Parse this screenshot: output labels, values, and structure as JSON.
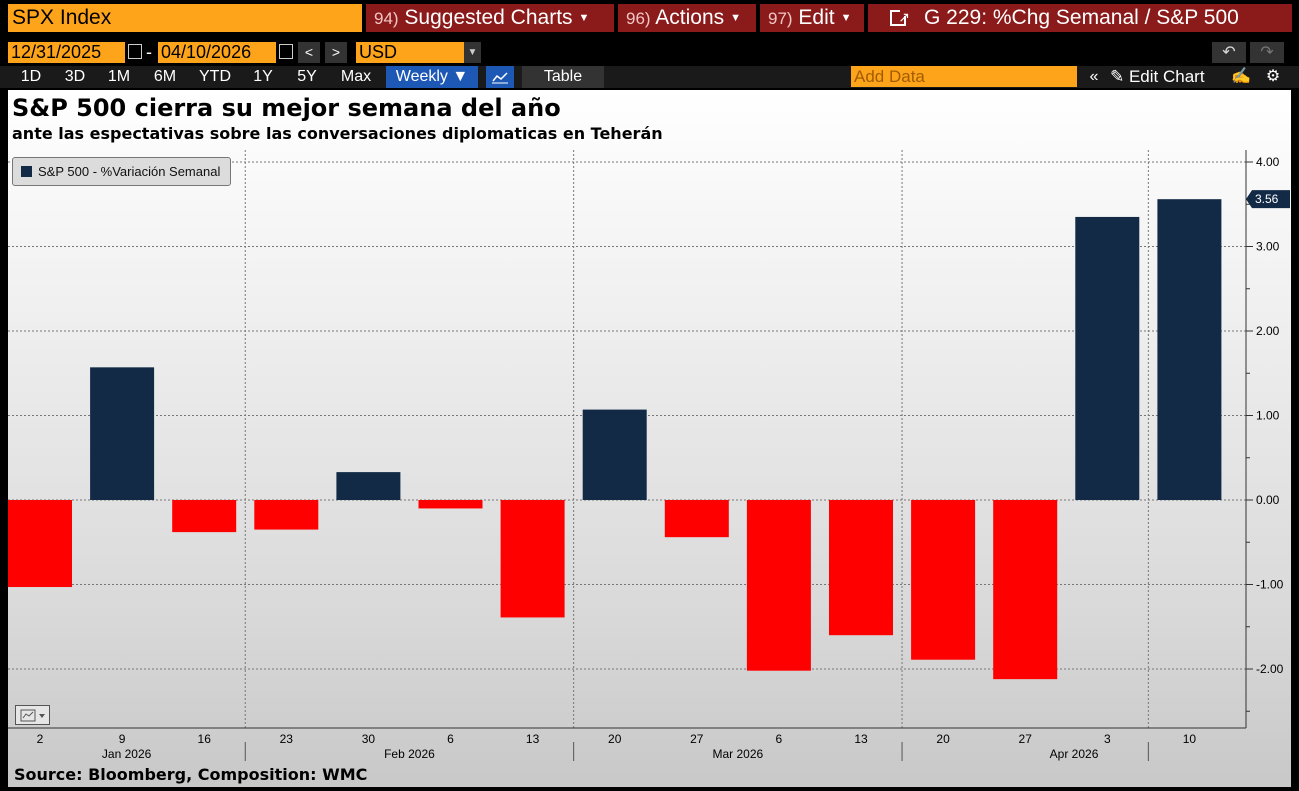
{
  "toolbar": {
    "ticker": "SPX Index",
    "menus": [
      {
        "num": "94)",
        "label": "Suggested Charts"
      },
      {
        "num": "96)",
        "label": "Actions"
      },
      {
        "num": "97)",
        "label": "Edit"
      }
    ],
    "chart_title_bar": "G 229: %Chg Semanal / S&P 500",
    "start_date": "12/31/2025",
    "date_separator": "-",
    "end_date": "04/10/2026",
    "currency": "USD",
    "periods": [
      "1D",
      "3D",
      "1M",
      "6M",
      "YTD",
      "1Y",
      "5Y",
      "Max"
    ],
    "frequency": "Weekly ▼",
    "table_label": "Table",
    "add_data_placeholder": "Add Data",
    "edit_chart_label": "Edit Chart"
  },
  "source": "Source: Bloomberg, Composition: WMC",
  "colors": {
    "positive": "#132a46",
    "negative": "#ff0000",
    "accent": "#fea41a",
    "menu": "#8b1a1a"
  },
  "chart_data": {
    "type": "bar",
    "title": "S&P 500 cierra su mejor semana del año",
    "subtitle": "ante las espectativas sobre las conversaciones diplomaticas en Teherán",
    "legend": [
      {
        "name": "S&P 500 - %Variación Semanal"
      }
    ],
    "legend_position": "top-left",
    "categories": [
      "2",
      "9",
      "16",
      "23",
      "30",
      "6",
      "13",
      "20",
      "27",
      "6",
      "13",
      "20",
      "27",
      "3",
      "10"
    ],
    "month_labels": [
      {
        "label": "Jan 2026",
        "after_index": 2
      },
      {
        "label": "Feb 2026",
        "after_index": 6
      },
      {
        "label": "Mar 2026",
        "after_index": 10
      },
      {
        "label": "Apr 2026",
        "after_index": 13
      }
    ],
    "values": [
      -1.03,
      1.57,
      -0.38,
      -0.35,
      0.33,
      -0.1,
      -1.39,
      1.07,
      -0.44,
      -2.02,
      -1.6,
      -1.89,
      -2.12,
      3.35,
      3.56
    ],
    "last_value_label": "3.56",
    "yticks": [
      "4.00",
      "3.00",
      "2.00",
      "1.00",
      "0.00",
      "-1.00",
      "-2.00"
    ],
    "ylim": [
      -2.6,
      4.15
    ],
    "grid": true
  }
}
